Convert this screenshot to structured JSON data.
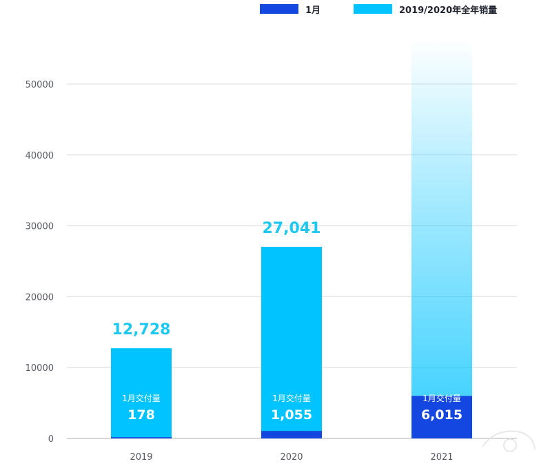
{
  "chart_data": {
    "type": "bar",
    "categories": [
      "2019",
      "2020",
      "2021"
    ],
    "series": [
      {
        "name": "1月",
        "values": [
          178,
          1055,
          6015
        ],
        "color": "#1447e0"
      },
      {
        "name": "2019/2020年全年销量",
        "values": [
          12728,
          27041,
          null
        ],
        "color": "#00c3ff"
      }
    ],
    "total_labels": [
      "12,728",
      "27,041",
      ""
    ],
    "jan_labels": [
      "178",
      "1,055",
      "6,015"
    ],
    "jan_caption": "1月交付量",
    "y_ticks": [
      "0",
      "10000",
      "20000",
      "30000",
      "40000",
      "50000"
    ],
    "ylim": [
      0,
      56000
    ],
    "grid": true,
    "legend_position": "top-right",
    "title": "",
    "xlabel": "",
    "ylabel": ""
  },
  "colors": {
    "jan": "#1447e0",
    "annual": "#00c3ff",
    "total_label": "#1ec8f0",
    "grid": "#d9dce0",
    "axis": "#aeb3b8"
  }
}
